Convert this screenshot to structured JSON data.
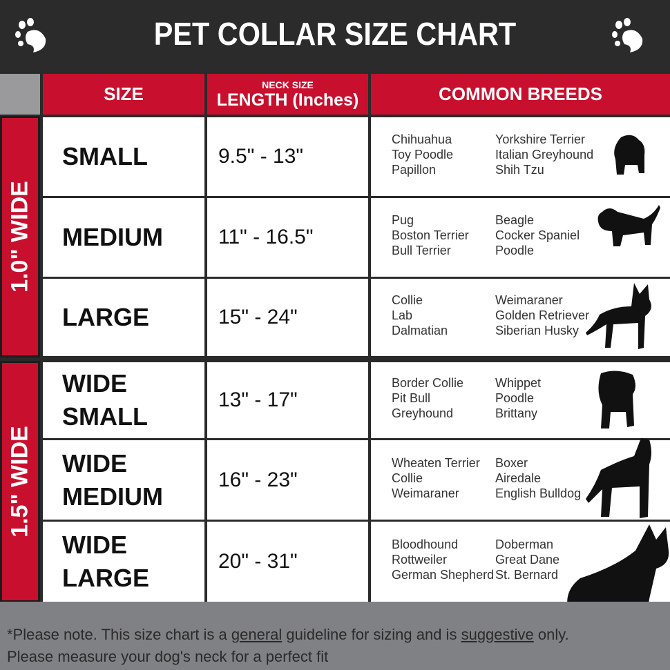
{
  "title": "PET COLLAR SIZE CHART",
  "headers": {
    "size": "SIZE",
    "neck_size": "NECK SIZE",
    "length": "LENGTH (Inches)",
    "breeds": "COMMON BREEDS"
  },
  "groups": [
    {
      "label": "1.0\" WIDE"
    },
    {
      "label": "1.5\" WIDE"
    }
  ],
  "rows": [
    {
      "size": [
        "SMALL"
      ],
      "length": "9.5\" - 13\"",
      "breeds1": [
        "Chihuahua",
        "Toy Poodle",
        "Papillon"
      ],
      "breeds2": [
        "Yorkshire Terrier",
        "Italian Greyhound",
        "Shih Tzu"
      ]
    },
    {
      "size": [
        "MEDIUM"
      ],
      "length": "11\" - 16.5\"",
      "breeds1": [
        "Pug",
        "Boston Terrier",
        "Bull Terrier"
      ],
      "breeds2": [
        "Beagle",
        "Cocker Spaniel",
        "Poodle"
      ]
    },
    {
      "size": [
        "LARGE"
      ],
      "length": "15\" - 24\"",
      "breeds1": [
        "Collie",
        "Lab",
        "Dalmatian"
      ],
      "breeds2": [
        "Weimaraner",
        "Golden Retriever",
        "Siberian Husky"
      ]
    },
    {
      "size": [
        "WIDE",
        "SMALL"
      ],
      "length": "13\" - 17\"",
      "breeds1": [
        "Border Collie",
        "Pit Bull",
        "Greyhound"
      ],
      "breeds2": [
        "Whippet",
        "Poodle",
        "Brittany"
      ]
    },
    {
      "size": [
        "WIDE",
        "MEDIUM"
      ],
      "length": "16\" - 23\"",
      "breeds1": [
        "Wheaten Terrier",
        "Collie",
        "Weimaraner"
      ],
      "breeds2": [
        "Boxer",
        "Airedale",
        "English Bulldog"
      ]
    },
    {
      "size": [
        "WIDE",
        "LARGE"
      ],
      "length": "20\" - 31\"",
      "breeds1": [
        "Bloodhound",
        "Rottweiler",
        "German Shepherd"
      ],
      "breeds2": [
        "Doberman",
        "Great Dane",
        "St. Bernard"
      ]
    }
  ],
  "footer": {
    "p1": "*Please note. This size chart is a",
    "u1": "general",
    "p2": "guideline for sizing and is",
    "u2": "suggestive",
    "p3": "only.",
    "line2": "Please measure your dog's neck for a perfect fit"
  },
  "colors": {
    "red": "#c8102e",
    "dark": "#2b2b2b",
    "gray": "#808185"
  }
}
